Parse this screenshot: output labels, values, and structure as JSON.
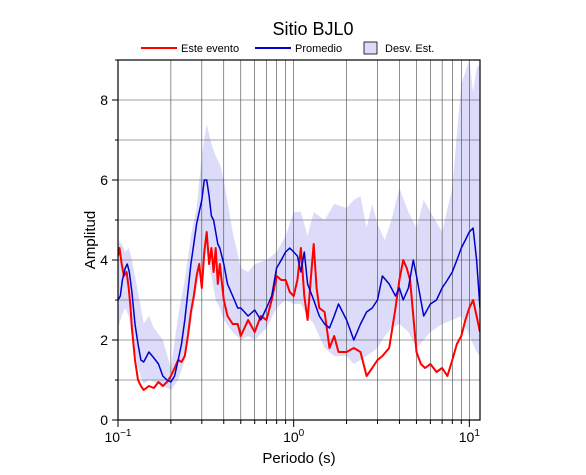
{
  "chart_data": {
    "type": "line",
    "title": "Sitio BJL0",
    "xlabel": "Periodo (s)",
    "ylabel": "Amplitud",
    "xscale": "log",
    "xlim": [
      0.1,
      11.5
    ],
    "ylim": [
      0,
      9
    ],
    "x_ticks": [
      {
        "value": 0.1,
        "base": "10",
        "exp": "−1"
      },
      {
        "value": 1,
        "base": "10",
        "exp": "0"
      },
      {
        "value": 10,
        "base": "10",
        "exp": "1"
      }
    ],
    "y_ticks": [
      0,
      2,
      4,
      6,
      8
    ],
    "grid": true,
    "legend": {
      "placement": "top",
      "entries": [
        {
          "label": "Este evento",
          "kind": "line",
          "color": "#ff0000"
        },
        {
          "label": "Promedio",
          "kind": "line",
          "color": "#0000cc"
        },
        {
          "label": "Desv. Est.",
          "kind": "band",
          "color": "#dcdcfa"
        }
      ]
    },
    "series": [
      {
        "name": "Este evento",
        "color": "#ff0000",
        "x": [
          0.1,
          0.102,
          0.105,
          0.108,
          0.112,
          0.115,
          0.118,
          0.12,
          0.125,
          0.13,
          0.135,
          0.14,
          0.15,
          0.16,
          0.17,
          0.18,
          0.19,
          0.2,
          0.21,
          0.22,
          0.23,
          0.24,
          0.25,
          0.26,
          0.27,
          0.28,
          0.29,
          0.3,
          0.31,
          0.32,
          0.33,
          0.34,
          0.35,
          0.36,
          0.37,
          0.38,
          0.4,
          0.42,
          0.45,
          0.48,
          0.5,
          0.55,
          0.6,
          0.65,
          0.7,
          0.75,
          0.8,
          0.85,
          0.9,
          0.95,
          1.0,
          1.05,
          1.1,
          1.15,
          1.2,
          1.25,
          1.3,
          1.35,
          1.4,
          1.5,
          1.6,
          1.7,
          1.8,
          1.9,
          2.0,
          2.2,
          2.4,
          2.6,
          2.8,
          3.0,
          3.2,
          3.5,
          3.8,
          4.0,
          4.2,
          4.4,
          4.6,
          4.8,
          5.0,
          5.3,
          5.6,
          6.0,
          6.5,
          7.0,
          7.5,
          8.0,
          8.5,
          9.0,
          9.5,
          10.0,
          10.5,
          11.0,
          11.5
        ],
        "y": [
          4.1,
          4.3,
          3.9,
          3.6,
          3.7,
          3.3,
          2.8,
          2.3,
          1.5,
          1.0,
          0.85,
          0.75,
          0.85,
          0.8,
          0.95,
          0.85,
          0.95,
          1.1,
          1.3,
          1.5,
          1.45,
          1.6,
          2.1,
          2.7,
          3.1,
          3.6,
          3.9,
          3.3,
          4.2,
          4.7,
          3.9,
          4.3,
          3.7,
          4.3,
          3.4,
          3.9,
          3.0,
          2.6,
          2.4,
          2.4,
          2.1,
          2.5,
          2.2,
          2.6,
          2.5,
          3.0,
          3.6,
          3.5,
          3.5,
          3.2,
          3.1,
          3.5,
          4.3,
          3.1,
          2.5,
          3.5,
          4.4,
          3.3,
          2.8,
          2.7,
          1.8,
          2.1,
          1.7,
          1.7,
          1.7,
          1.8,
          1.7,
          1.1,
          1.3,
          1.5,
          1.6,
          1.8,
          2.8,
          3.5,
          4.0,
          3.8,
          3.5,
          2.6,
          1.7,
          1.4,
          1.3,
          1.4,
          1.2,
          1.3,
          1.1,
          1.5,
          1.9,
          2.1,
          2.5,
          2.8,
          3.0,
          2.6,
          2.2
        ]
      },
      {
        "name": "Promedio",
        "color": "#0000cc",
        "x": [
          0.1,
          0.103,
          0.106,
          0.11,
          0.113,
          0.116,
          0.12,
          0.125,
          0.13,
          0.135,
          0.14,
          0.15,
          0.16,
          0.17,
          0.18,
          0.19,
          0.2,
          0.21,
          0.22,
          0.23,
          0.24,
          0.25,
          0.26,
          0.27,
          0.28,
          0.29,
          0.3,
          0.31,
          0.32,
          0.33,
          0.34,
          0.35,
          0.36,
          0.37,
          0.38,
          0.4,
          0.42,
          0.45,
          0.48,
          0.5,
          0.55,
          0.6,
          0.65,
          0.7,
          0.75,
          0.8,
          0.85,
          0.9,
          0.95,
          1.0,
          1.05,
          1.1,
          1.15,
          1.2,
          1.3,
          1.4,
          1.5,
          1.6,
          1.7,
          1.8,
          2.0,
          2.2,
          2.4,
          2.6,
          2.8,
          3.0,
          3.2,
          3.5,
          3.8,
          4.0,
          4.2,
          4.5,
          4.8,
          5.0,
          5.5,
          6.0,
          6.5,
          7.0,
          7.5,
          8.0,
          8.5,
          9.0,
          9.5,
          10.0,
          10.5,
          11.0,
          11.5
        ],
        "y": [
          3.0,
          3.1,
          3.5,
          3.8,
          3.9,
          3.7,
          3.2,
          2.4,
          1.9,
          1.5,
          1.45,
          1.7,
          1.55,
          1.4,
          1.1,
          1.0,
          0.95,
          1.1,
          1.5,
          1.9,
          2.5,
          3.2,
          3.9,
          4.4,
          4.9,
          5.2,
          5.5,
          6.0,
          6.0,
          5.6,
          5.1,
          5.0,
          4.7,
          4.4,
          4.3,
          3.9,
          3.4,
          3.1,
          2.8,
          2.8,
          2.6,
          2.75,
          2.5,
          2.8,
          3.1,
          3.8,
          4.0,
          4.2,
          4.3,
          4.2,
          4.1,
          3.7,
          4.2,
          3.4,
          3.0,
          2.6,
          2.4,
          2.3,
          2.6,
          2.9,
          2.5,
          2.0,
          2.4,
          2.7,
          2.8,
          3.0,
          3.6,
          3.4,
          3.1,
          3.3,
          3.0,
          3.3,
          4.0,
          3.6,
          2.6,
          2.9,
          3.0,
          3.3,
          3.5,
          3.7,
          4.0,
          4.3,
          4.5,
          4.7,
          4.8,
          4.0,
          2.8
        ]
      }
    ],
    "band": {
      "name": "Desv. Est.",
      "color": "#dcdcfa",
      "x": [
        0.1,
        0.105,
        0.11,
        0.115,
        0.12,
        0.13,
        0.14,
        0.15,
        0.16,
        0.18,
        0.2,
        0.22,
        0.24,
        0.26,
        0.28,
        0.3,
        0.32,
        0.34,
        0.36,
        0.38,
        0.4,
        0.45,
        0.5,
        0.55,
        0.6,
        0.7,
        0.8,
        0.9,
        1.0,
        1.1,
        1.2,
        1.3,
        1.5,
        1.7,
        2.0,
        2.2,
        2.4,
        2.6,
        2.8,
        3.0,
        3.3,
        3.6,
        4.0,
        4.5,
        5.0,
        5.5,
        6.0,
        7.0,
        8.0,
        9.0,
        10.0,
        10.5,
        11.0,
        11.5
      ],
      "lower": [
        2.3,
        2.6,
        2.8,
        2.6,
        2.1,
        1.3,
        0.9,
        1.0,
        0.95,
        0.85,
        0.75,
        1.0,
        1.5,
        2.4,
        3.3,
        3.9,
        4.2,
        3.6,
        3.0,
        2.8,
        2.5,
        2.2,
        2.0,
        2.1,
        2.0,
        2.3,
        2.8,
        3.0,
        2.9,
        2.9,
        2.6,
        2.4,
        1.8,
        1.6,
        1.6,
        1.4,
        1.5,
        1.6,
        1.7,
        1.8,
        2.1,
        2.3,
        2.4,
        2.2,
        1.8,
        2.0,
        2.2,
        2.4,
        2.5,
        2.6,
        2.1,
        1.9,
        1.7,
        1.6
      ],
      "upper": [
        4.5,
        4.4,
        4.2,
        4.3,
        4.0,
        3.2,
        2.4,
        2.6,
        2.3,
        2.0,
        1.3,
        2.6,
        3.5,
        4.6,
        5.3,
        6.6,
        7.4,
        6.9,
        6.6,
        6.4,
        6.0,
        4.7,
        3.8,
        3.7,
        3.9,
        4.0,
        4.2,
        4.6,
        5.2,
        5.2,
        4.6,
        5.2,
        5.0,
        5.4,
        5.3,
        5.5,
        5.6,
        4.8,
        5.4,
        4.9,
        4.5,
        5.0,
        5.8,
        5.2,
        4.8,
        5.5,
        5.2,
        4.7,
        5.8,
        8.4,
        9.0,
        8.2,
        8.8,
        8.9
      ]
    }
  }
}
